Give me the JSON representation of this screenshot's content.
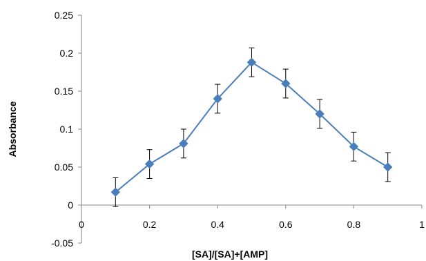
{
  "chart_data": {
    "type": "line",
    "title": "",
    "xlabel": "[SA]/[SA]+[AMP]",
    "ylabel": "Absorbance",
    "xlim": [
      0,
      1
    ],
    "ylim": [
      -0.05,
      0.25
    ],
    "x_ticks": [
      "0",
      "0.2",
      "0.4",
      "0.6",
      "0.8",
      "1"
    ],
    "y_ticks": [
      "-0.05",
      "0",
      "0.05",
      "0.1",
      "0.15",
      "0.2",
      "0.25"
    ],
    "x_tick_values": [
      0,
      0.2,
      0.4,
      0.6,
      0.8,
      1
    ],
    "y_tick_values": [
      -0.05,
      0,
      0.05,
      0.1,
      0.15,
      0.2,
      0.25
    ],
    "grid": false,
    "legend": "none",
    "series": [
      {
        "color": "#4a7ebb",
        "marker": "diamond",
        "x": [
          0.1,
          0.2,
          0.3,
          0.4,
          0.5,
          0.6,
          0.7,
          0.8,
          0.9
        ],
        "y": [
          0.017,
          0.054,
          0.081,
          0.14,
          0.188,
          0.16,
          0.12,
          0.077,
          0.05
        ],
        "error": [
          0.019,
          0.019,
          0.019,
          0.019,
          0.019,
          0.019,
          0.019,
          0.019,
          0.019
        ]
      }
    ]
  }
}
